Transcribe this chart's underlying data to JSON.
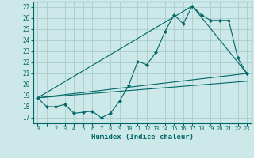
{
  "xlabel": "Humidex (Indice chaleur)",
  "bg_color": "#cce8e8",
  "grid_color": "#aacccc",
  "line_color": "#006666",
  "xlim": [
    -0.5,
    23.5
  ],
  "ylim": [
    16.5,
    27.5
  ],
  "yticks": [
    17,
    18,
    19,
    20,
    21,
    22,
    23,
    24,
    25,
    26,
    27
  ],
  "xticks": [
    0,
    1,
    2,
    3,
    4,
    5,
    6,
    7,
    8,
    9,
    10,
    11,
    12,
    13,
    14,
    15,
    16,
    17,
    18,
    19,
    20,
    21,
    22,
    23
  ],
  "line1_x": [
    0,
    1,
    2,
    3,
    4,
    5,
    6,
    7,
    8,
    9,
    10,
    11,
    12,
    13,
    14,
    15,
    16,
    17,
    18,
    19,
    20,
    21,
    22,
    23
  ],
  "line1_y": [
    18.8,
    18.0,
    18.0,
    18.2,
    17.4,
    17.5,
    17.6,
    17.0,
    17.4,
    18.5,
    19.9,
    22.1,
    21.8,
    22.9,
    24.8,
    26.3,
    25.5,
    27.1,
    26.3,
    25.8,
    25.8,
    25.8,
    22.4,
    21.0
  ],
  "line2_x": [
    0,
    23
  ],
  "line2_y": [
    18.8,
    21.0
  ],
  "line3_x": [
    0,
    17,
    23
  ],
  "line3_y": [
    18.8,
    27.1,
    21.0
  ],
  "line4_x": [
    0,
    23
  ],
  "line4_y": [
    18.8,
    20.3
  ]
}
